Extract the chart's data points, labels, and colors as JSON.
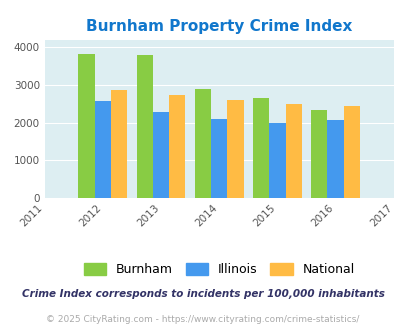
{
  "title": "Burnham Property Crime Index",
  "years": [
    2011,
    2012,
    2013,
    2014,
    2015,
    2016,
    2017
  ],
  "bar_years": [
    2012,
    2013,
    2014,
    2015,
    2016
  ],
  "burnham": [
    3820,
    3790,
    2900,
    2650,
    2340
  ],
  "illinois": [
    2570,
    2270,
    2090,
    2000,
    2060
  ],
  "national": [
    2870,
    2730,
    2600,
    2500,
    2450
  ],
  "burnham_color": "#88cc44",
  "illinois_color": "#4499ee",
  "national_color": "#ffbb44",
  "bg_color": "#ddeef2",
  "ylim": [
    0,
    4200
  ],
  "yticks": [
    0,
    1000,
    2000,
    3000,
    4000
  ],
  "title_color": "#1177cc",
  "title_fontsize": 11,
  "footnote1": "Crime Index corresponds to incidents per 100,000 inhabitants",
  "footnote2": "© 2025 CityRating.com - https://www.cityrating.com/crime-statistics/",
  "footnote1_color": "#333366",
  "footnote2_color": "#aaaaaa",
  "legend_labels": [
    "Burnham",
    "Illinois",
    "National"
  ],
  "bar_width": 0.28
}
